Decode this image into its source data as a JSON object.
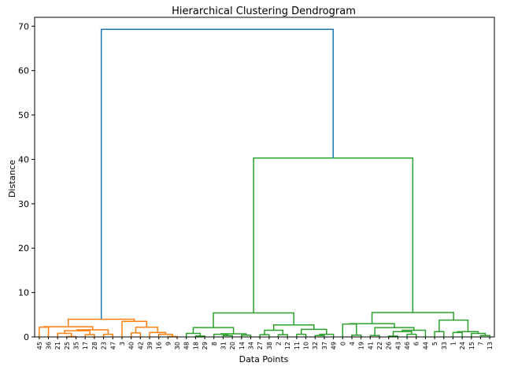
{
  "chart_data": {
    "type": "dendrogram",
    "title": "Hierarchical Clustering Dendrogram",
    "xlabel": "Data Points",
    "ylabel": "Distance",
    "ylim": [
      0,
      72
    ],
    "yticks": [
      0,
      10,
      20,
      30,
      40,
      50,
      60,
      70
    ],
    "grid": false,
    "leaves": [
      "45",
      "36",
      "21",
      "25",
      "35",
      "17",
      "28",
      "23",
      "47",
      "3",
      "40",
      "42",
      "39",
      "16",
      "9",
      "30",
      "48",
      "18",
      "29",
      "8",
      "31",
      "20",
      "14",
      "34",
      "27",
      "38",
      "2",
      "12",
      "11",
      "10",
      "32",
      "37",
      "49",
      "0",
      "4",
      "19",
      "41",
      "22",
      "26",
      "43",
      "46",
      "6",
      "44",
      "5",
      "33",
      "1",
      "24",
      "15",
      "7",
      "13"
    ],
    "colors": {
      "orange": "#ff7f0e",
      "green": "#2ca02c",
      "blue": "#1f77b4"
    },
    "links": [
      {
        "id": "o1",
        "a": "L0",
        "b": "L1",
        "h": 2.2,
        "color": "orange"
      },
      {
        "id": "o2",
        "a": "L3",
        "b": "L4",
        "h": 0.1,
        "color": "orange"
      },
      {
        "id": "o3",
        "a": "L2",
        "b": "o2",
        "h": 0.8,
        "color": "orange"
      },
      {
        "id": "o4",
        "a": "L5",
        "b": "L6",
        "h": 0.5,
        "color": "orange"
      },
      {
        "id": "o5",
        "a": "o3",
        "b": "o4",
        "h": 1.4,
        "color": "orange"
      },
      {
        "id": "o6",
        "a": "L7",
        "b": "L8",
        "h": 0.6,
        "color": "orange"
      },
      {
        "id": "o7",
        "a": "o5",
        "b": "o6",
        "h": 1.6,
        "color": "orange"
      },
      {
        "id": "o8",
        "a": "o1",
        "b": "o7",
        "h": 2.3,
        "color": "orange"
      },
      {
        "id": "o9",
        "a": "L10",
        "b": "L11",
        "h": 0.9,
        "color": "orange"
      },
      {
        "id": "o10",
        "a": "L14",
        "b": "L15",
        "h": 0.1,
        "color": "orange"
      },
      {
        "id": "o11",
        "a": "L13",
        "b": "o10",
        "h": 0.6,
        "color": "orange"
      },
      {
        "id": "o12",
        "a": "L12",
        "b": "o11",
        "h": 1.0,
        "color": "orange"
      },
      {
        "id": "o13",
        "a": "o9",
        "b": "o12",
        "h": 2.2,
        "color": "orange"
      },
      {
        "id": "o14",
        "a": "L9",
        "b": "o13",
        "h": 3.5,
        "color": "orange"
      },
      {
        "id": "o15",
        "a": "o8",
        "b": "o14",
        "h": 4.0,
        "color": "orange"
      },
      {
        "id": "g1",
        "a": "L17",
        "b": "L18",
        "h": 0.2,
        "color": "green"
      },
      {
        "id": "g2",
        "a": "L16",
        "b": "g1",
        "h": 0.8,
        "color": "green"
      },
      {
        "id": "g3",
        "a": "L20",
        "b": "L21",
        "h": 0.3,
        "color": "green"
      },
      {
        "id": "g4",
        "a": "L19",
        "b": "g3",
        "h": 0.6,
        "color": "green"
      },
      {
        "id": "g5",
        "a": "L22",
        "b": "L23",
        "h": 0.4,
        "color": "green"
      },
      {
        "id": "g6",
        "a": "g4",
        "b": "g5",
        "h": 0.7,
        "color": "green"
      },
      {
        "id": "g7",
        "a": "g2",
        "b": "g6",
        "h": 2.1,
        "color": "green"
      },
      {
        "id": "g8",
        "a": "L24",
        "b": "L25",
        "h": 0.5,
        "color": "green"
      },
      {
        "id": "g9",
        "a": "L26",
        "b": "L27",
        "h": 0.5,
        "color": "green"
      },
      {
        "id": "g10",
        "a": "g8",
        "b": "g9",
        "h": 1.5,
        "color": "green"
      },
      {
        "id": "g11",
        "a": "L28",
        "b": "L29",
        "h": 0.6,
        "color": "green"
      },
      {
        "id": "g12",
        "a": "L30",
        "b": "L31",
        "h": 0.3,
        "color": "green"
      },
      {
        "id": "g13",
        "a": "g12",
        "b": "L32",
        "h": 0.6,
        "color": "green"
      },
      {
        "id": "g14",
        "a": "g11",
        "b": "g13",
        "h": 1.7,
        "color": "green"
      },
      {
        "id": "g15",
        "a": "g10",
        "b": "g14",
        "h": 2.7,
        "color": "green"
      },
      {
        "id": "g16",
        "a": "g7",
        "b": "g15",
        "h": 5.4,
        "color": "green"
      },
      {
        "id": "g17",
        "a": "L34",
        "b": "L35",
        "h": 0.4,
        "color": "green"
      },
      {
        "id": "g18",
        "a": "L33",
        "b": "g17",
        "h": 2.9,
        "color": "green"
      },
      {
        "id": "g19",
        "a": "L36",
        "b": "L37",
        "h": 0.3,
        "color": "green"
      },
      {
        "id": "g20",
        "a": "L38",
        "b": "L39",
        "h": 0.2,
        "color": "green"
      },
      {
        "id": "g21",
        "a": "L40",
        "b": "L41",
        "h": 0.6,
        "color": "green"
      },
      {
        "id": "g22",
        "a": "g20",
        "b": "g21",
        "h": 1.2,
        "color": "green"
      },
      {
        "id": "g23",
        "a": "g22",
        "b": "L42",
        "h": 1.5,
        "color": "green"
      },
      {
        "id": "g24",
        "a": "g19",
        "b": "g23",
        "h": 2.1,
        "color": "green"
      },
      {
        "id": "g25",
        "a": "g18",
        "b": "g24",
        "h": 3.0,
        "color": "green"
      },
      {
        "id": "g26",
        "a": "L43",
        "b": "L44",
        "h": 1.2,
        "color": "green"
      },
      {
        "id": "g27",
        "a": "L45",
        "b": "L46",
        "h": 1.0,
        "color": "green"
      },
      {
        "id": "g28",
        "a": "L48",
        "b": "L49",
        "h": 0.3,
        "color": "green"
      },
      {
        "id": "g29",
        "a": "L47",
        "b": "g28",
        "h": 0.8,
        "color": "green"
      },
      {
        "id": "g30",
        "a": "g27",
        "b": "g29",
        "h": 1.2,
        "color": "green"
      },
      {
        "id": "g31",
        "a": "g26",
        "b": "g30",
        "h": 3.8,
        "color": "green"
      },
      {
        "id": "g32",
        "a": "g25",
        "b": "g31",
        "h": 5.5,
        "color": "green"
      },
      {
        "id": "g33",
        "a": "g16",
        "b": "g32",
        "h": 40.3,
        "color": "green"
      },
      {
        "id": "b1",
        "a": "o15",
        "b": "g33",
        "h": 69.3,
        "color": "blue"
      }
    ]
  }
}
